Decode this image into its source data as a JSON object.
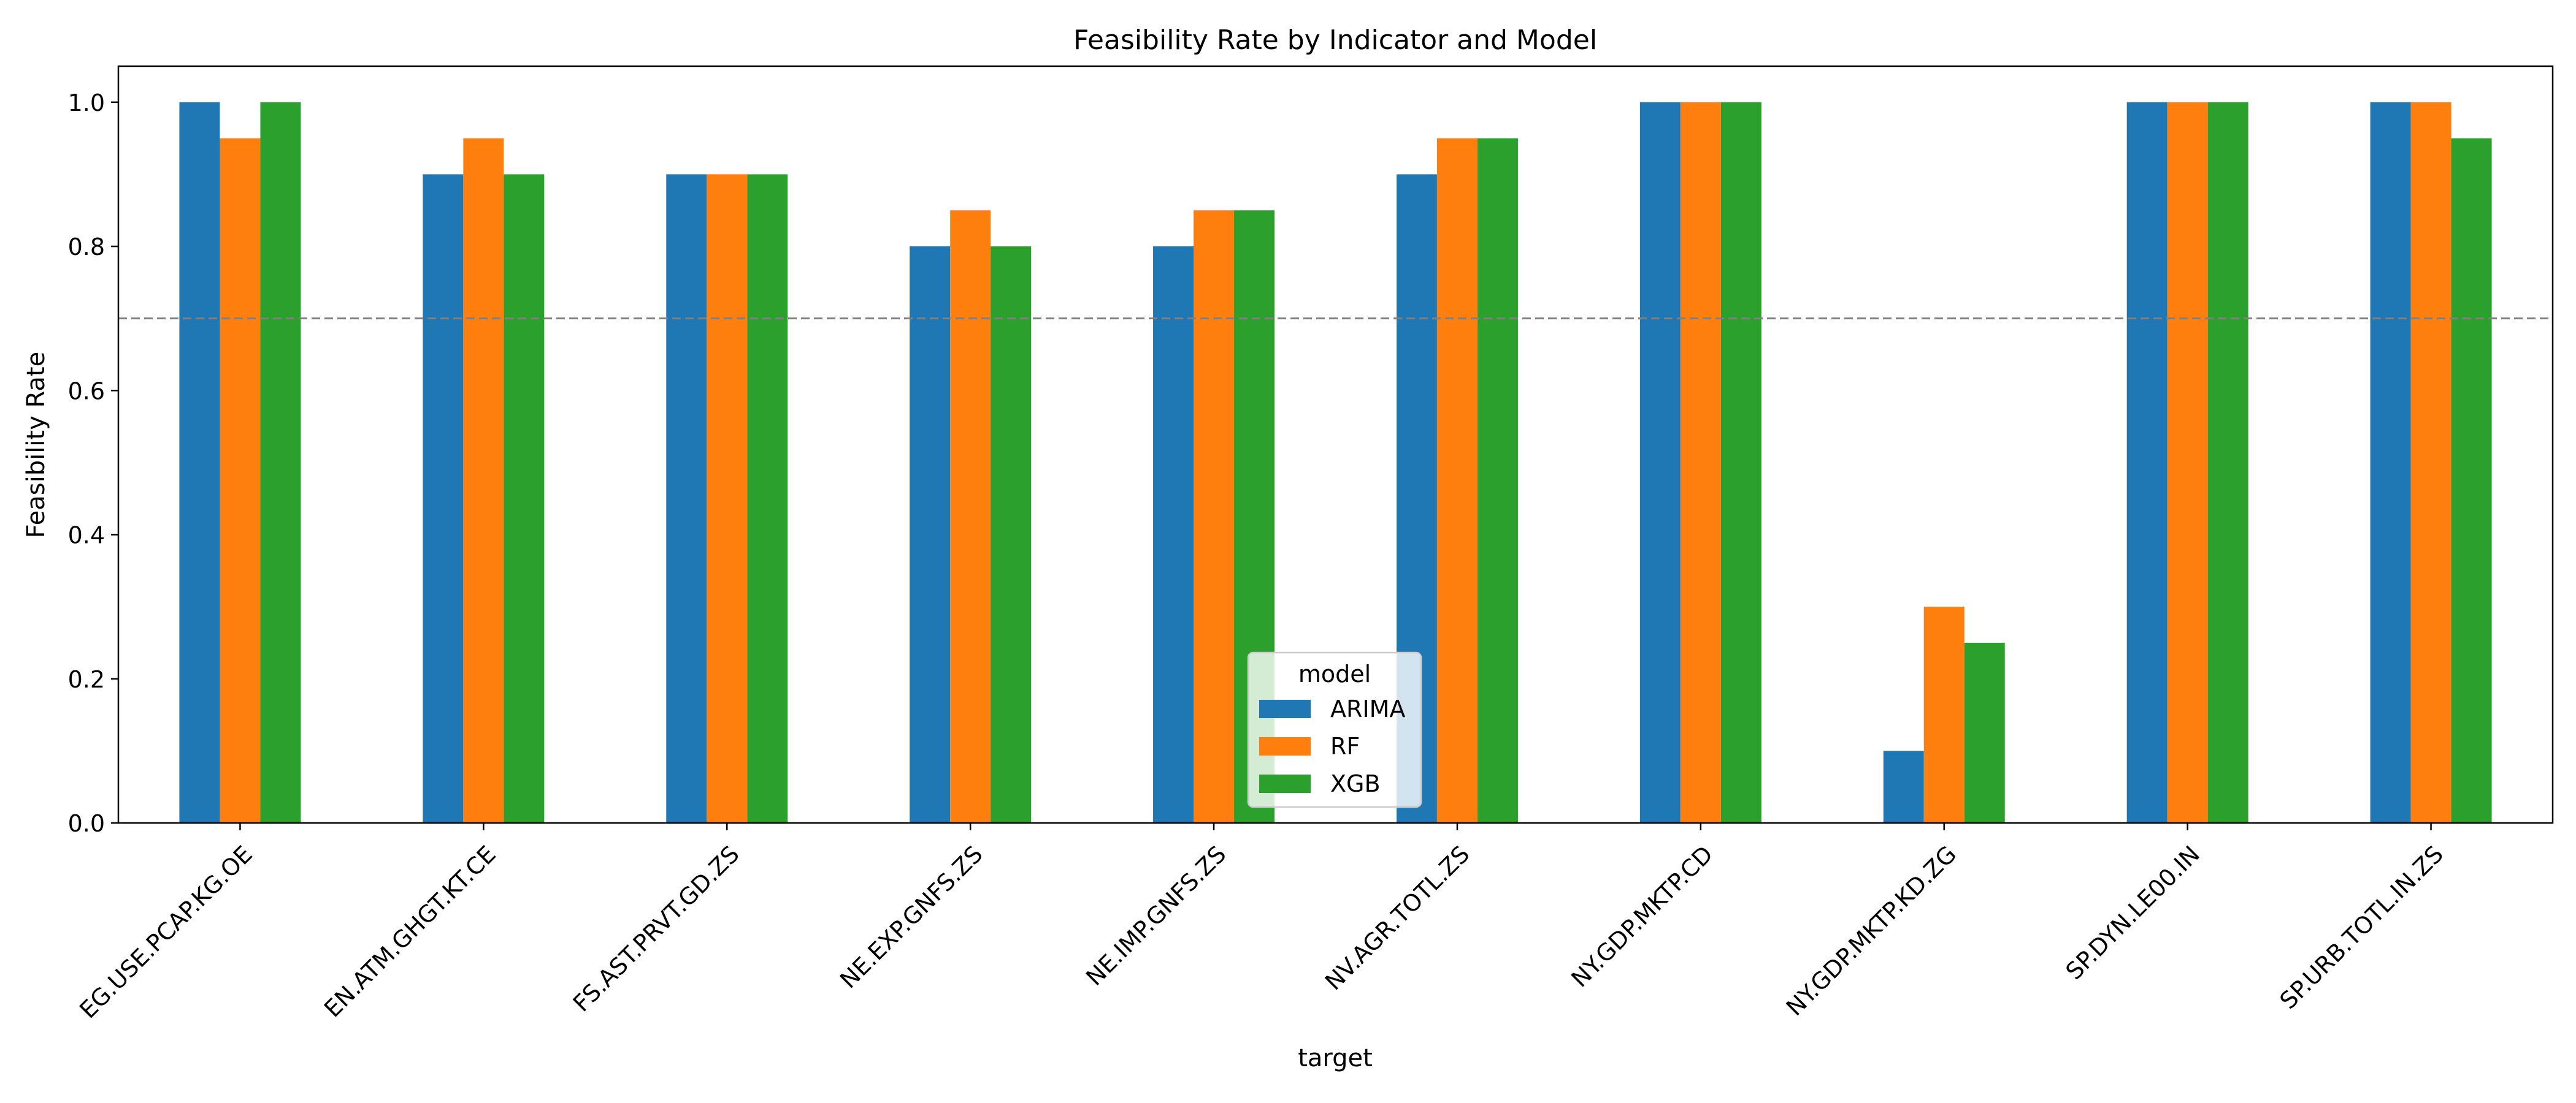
{
  "chart_data": {
    "type": "bar",
    "title": "Feasibility Rate by Indicator and Model",
    "xlabel": "target",
    "ylabel": "Feasibility Rate",
    "categories": [
      "EG.USE.PCAP.KG.OE",
      "EN.ATM.GHGT.KT.CE",
      "FS.AST.PRVT.GD.ZS",
      "NE.EXP.GNFS.ZS",
      "NE.IMP.GNFS.ZS",
      "NV.AGR.TOTL.ZS",
      "NY.GDP.MKTP.CD",
      "NY.GDP.MKTP.KD.ZG",
      "SP.DYN.LE00.IN",
      "SP.URB.TOTL.IN.ZS"
    ],
    "series": [
      {
        "name": "ARIMA",
        "color": "#1f77b4",
        "values": [
          1.0,
          0.9,
          0.9,
          0.8,
          0.8,
          0.9,
          1.0,
          0.1,
          1.0,
          1.0
        ]
      },
      {
        "name": "RF",
        "color": "#ff7f0e",
        "values": [
          0.95,
          0.95,
          0.9,
          0.85,
          0.85,
          0.95,
          1.0,
          0.3,
          1.0,
          1.0
        ]
      },
      {
        "name": "XGB",
        "color": "#2ca02c",
        "values": [
          1.0,
          0.9,
          0.9,
          0.8,
          0.85,
          0.95,
          1.0,
          0.25,
          1.0,
          0.95
        ]
      }
    ],
    "ylim": [
      0,
      1.05
    ],
    "yticks": [
      "0.0",
      "0.2",
      "0.4",
      "0.6",
      "0.8",
      "1.0"
    ],
    "threshold": 0.7,
    "legend": {
      "title": "model",
      "position": "lower-center"
    },
    "grid": false
  }
}
